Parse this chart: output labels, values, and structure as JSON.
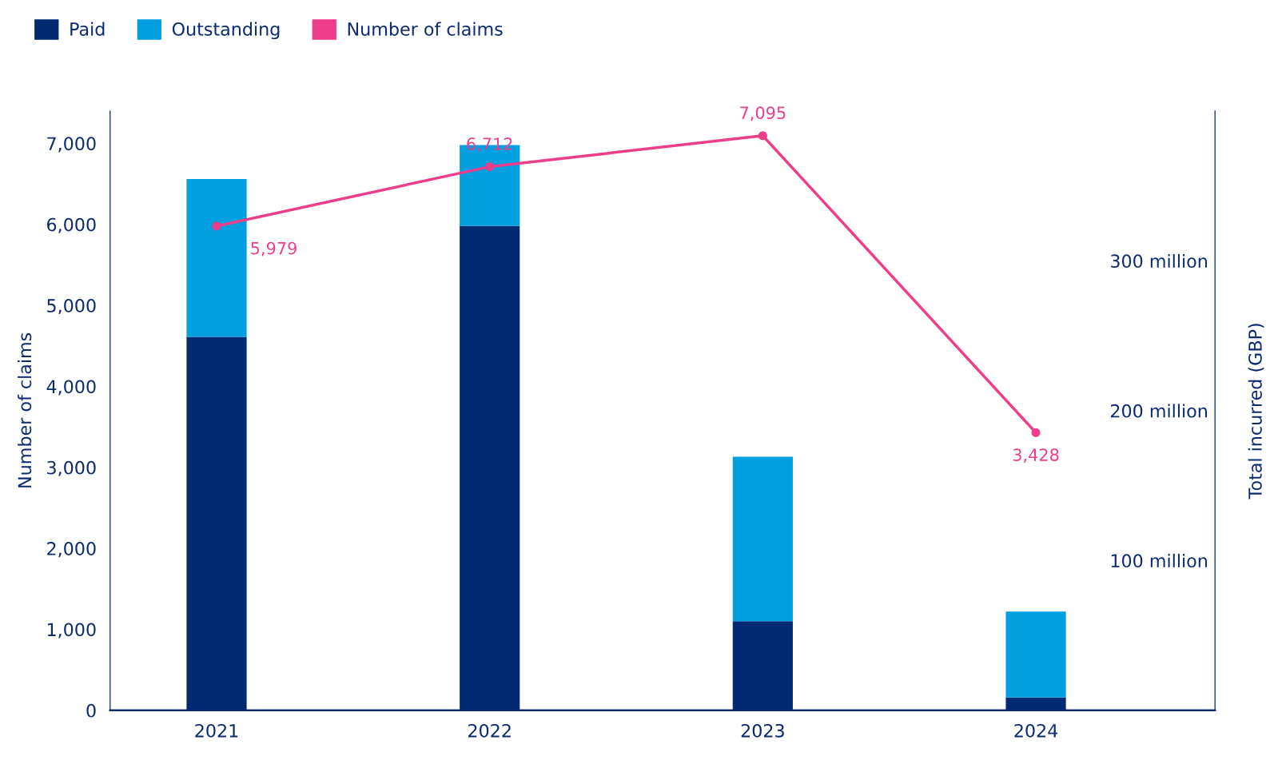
{
  "chart_data": {
    "type": "bar",
    "stacked": true,
    "categories": [
      "2021",
      "2022",
      "2023",
      "2024"
    ],
    "series": [
      {
        "name": "Paid",
        "axis": "y2",
        "color": "#002a72",
        "values": [
          249.2,
          323.2,
          59.5,
          8.6
        ]
      },
      {
        "name": "Outstanding",
        "axis": "y2",
        "color": "#009fe0",
        "values": [
          105.4,
          54.1,
          109.7,
          57.3
        ]
      },
      {
        "name": "Number of claims",
        "type": "line",
        "axis": "y",
        "color": "#ee3d8b",
        "marker": "circle",
        "values": [
          5979,
          6712,
          7095,
          3428
        ],
        "value_labels": [
          "5,979",
          "6,712",
          "7,095",
          "3,428"
        ]
      }
    ],
    "ylabel": "Number of claims",
    "y2label": "Total incurred (GBP)",
    "ylim": [
      0,
      7400
    ],
    "yticks": [
      {
        "value": 0,
        "label": "0"
      },
      {
        "value": 1000,
        "label": "1,000"
      },
      {
        "value": 2000,
        "label": "2,000"
      },
      {
        "value": 3000,
        "label": "3,000"
      },
      {
        "value": 4000,
        "label": "4,000"
      },
      {
        "value": 5000,
        "label": "5,000"
      },
      {
        "value": 6000,
        "label": "6,000"
      },
      {
        "value": 7000,
        "label": "7,000"
      }
    ],
    "y2lim": [
      0,
      400
    ],
    "y2ticks": [
      {
        "value": 100,
        "label": "100 million"
      },
      {
        "value": 200,
        "label": "200 million"
      },
      {
        "value": 300,
        "label": "300 million"
      }
    ],
    "grid": false,
    "legend": "top left"
  }
}
